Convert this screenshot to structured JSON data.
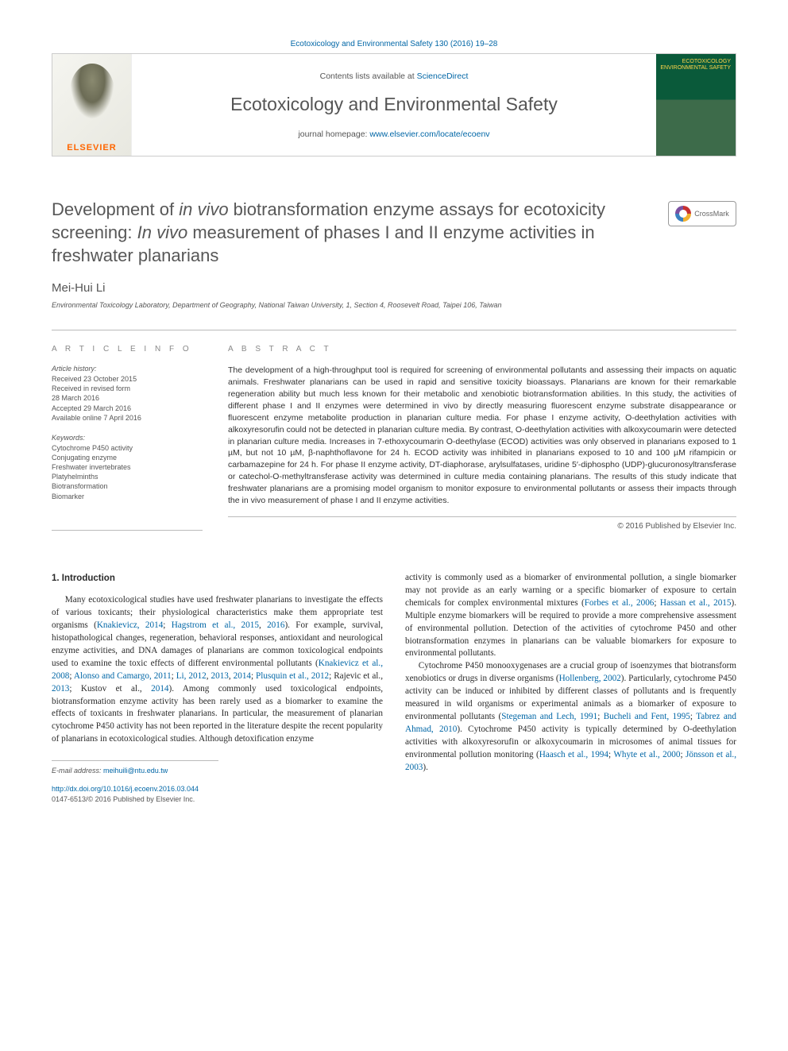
{
  "meta": {
    "citation": "Ecotoxicology and Environmental Safety 130 (2016) 19–28",
    "contents_prefix": "Contents lists available at ",
    "contents_link": "ScienceDirect",
    "journal_name": "Ecotoxicology and Environmental Safety",
    "homepage_prefix": "journal homepage: ",
    "homepage_url": "www.elsevier.com/locate/ecoenv",
    "elsevier": "ELSEVIER",
    "cover_text": "ECOTOXICOLOGY\nENVIRONMENTAL\nSAFETY",
    "crossmark": "CrossMark"
  },
  "title": {
    "full_html": "Development of <span class='ital'>in vivo</span> biotransformation enzyme assays for ecotoxicity screening: <span class='ital'>In vivo</span> measurement of phases I and II enzyme activities in freshwater planarians"
  },
  "author": "Mei-Hui Li",
  "affiliation": "Environmental Toxicology Laboratory, Department of Geography, National Taiwan University, 1, Section 4, Roosevelt Road, Taipei 106, Taiwan",
  "article_info": {
    "head": "A R T I C L E  I N F O",
    "history_head": "Article history:",
    "history": [
      "Received 23 October 2015",
      "Received in revised form",
      "28 March 2016",
      "Accepted 29 March 2016",
      "Available online 7 April 2016"
    ],
    "keywords_head": "Keywords:",
    "keywords": [
      "Cytochrome P450 activity",
      "Conjugating enzyme",
      "Freshwater invertebrates",
      "Platyhelminths",
      "Biotransformation",
      "Biomarker"
    ]
  },
  "abstract": {
    "head": "A B S T R A C T",
    "text": "The development of a high-throughput tool is required for screening of environmental pollutants and assessing their impacts on aquatic animals. Freshwater planarians can be used in rapid and sensitive toxicity bioassays. Planarians are known for their remarkable regeneration ability but much less known for their metabolic and xenobiotic biotransformation abilities. In this study, the activities of different phase I and II enzymes were determined in vivo by directly measuring fluorescent enzyme substrate disappearance or fluorescent enzyme metabolite production in planarian culture media. For phase I enzyme activity, O-deethylation activities with alkoxyresorufin could not be detected in planarian culture media. By contrast, O-deethylation activities with alkoxycoumarin were detected in planarian culture media. Increases in 7-ethoxycoumarin O-deethylase (ECOD) activities was only observed in planarians exposed to 1 µM, but not 10 µM, β-naphthoflavone for 24 h. ECOD activity was inhibited in planarians exposed to 10 and 100 µM rifampicin or carbamazepine for 24 h. For phase II enzyme activity, DT-diaphorase, arylsulfatases, uridine 5′-diphospho (UDP)-glucuronosyltransferase or catechol-O-methyltransferase activity was determined in culture media containing planarians. The results of this study indicate that freshwater planarians are a promising model organism to monitor exposure to environmental pollutants or assess their impacts through the in vivo measurement of phase I and II enzyme activities.",
    "copyright": "© 2016 Published by Elsevier Inc."
  },
  "intro": {
    "heading": "1. Introduction",
    "col1_p1": "Many ecotoxicological studies have used freshwater planarians to investigate the effects of various toxicants; their physiological characteristics make them appropriate test organisms (Knakievicz, 2014; Hagstrom et al., 2015, 2016). For example, survival, histopathological changes, regeneration, behavioral responses, antioxidant and neurological enzyme activities, and DNA damages of planarians are common toxicological endpoints used to examine the toxic effects of different environmental pollutants (Knakievicz et al., 2008; Alonso and Camargo, 2011; Li, 2012, 2013, 2014; Plusquin et al., 2012; Rajevic et al., 2013; Kustov et al., 2014). Among commonly used toxicological endpoints, biotransformation enzyme activity has been rarely used as a biomarker to examine the effects of toxicants in freshwater planarians. In particular, the measurement of planarian cytochrome P450 activity has not been reported in the literature despite the recent popularity of planarians in ecotoxicological studies. Although detoxification enzyme",
    "col2_p1": "activity is commonly used as a biomarker of environmental pollution, a single biomarker may not provide as an early warning or a specific biomarker of exposure to certain chemicals for complex environmental mixtures (Forbes et al., 2006; Hassan et al., 2015). Multiple enzyme biomarkers will be required to provide a more comprehensive assessment of environmental pollution. Detection of the activities of cytochrome P450 and other biotransformation enzymes in planarians can be valuable biomarkers for exposure to environmental pollutants.",
    "col2_p2": "Cytochrome P450 monooxygenases are a crucial group of isoenzymes that biotransform xenobiotics or drugs in diverse organisms (Hollenberg, 2002). Particularly, cytochrome P450 activity can be induced or inhibited by different classes of pollutants and is frequently measured in wild organisms or experimental animals as a biomarker of exposure to environmental pollutants (Stegeman and Lech, 1991; Bucheli and Fent, 1995; Tabrez and Ahmad, 2010). Cytochrome P450 activity is typically determined by O-deethylation activities with alkoxyresorufin or alkoxycoumarin in microsomes of animal tissues for environmental pollution monitoring (Haasch et al., 1994; Whyte et al., 2000; Jönsson et al., 2003).",
    "refs_col1": [
      "Knakievicz, 2014",
      "Hagstrom et al., 2015",
      "2016",
      "Knakievicz et al., 2008",
      "Alonso and Camargo, 2011",
      "Li, 2012",
      "2013",
      "2014",
      "Plusquin et al., 2012",
      "Rajevic et al., 2013",
      "Kustov et al., 2014"
    ],
    "refs_col2": [
      "Forbes et al., 2006",
      "Hassan et al., 2015",
      "Hollenberg, 2002",
      "Stegeman and Lech, 1991",
      "Bucheli and Fent, 1995",
      "Tabrez and Ahmad, 2010",
      "Haasch et al., 1994",
      "Whyte et al., 2000",
      "Jönsson et al., 2003"
    ]
  },
  "footer": {
    "email_label": "E-mail address: ",
    "email": "meihuili@ntu.edu.tw",
    "doi": "http://dx.doi.org/10.1016/j.ecoenv.2016.03.044",
    "issn_line": "0147-6513/© 2016 Published by Elsevier Inc."
  },
  "colors": {
    "link": "#0066a6",
    "text": "#333333",
    "muted": "#666666",
    "rule": "#bbbbbb",
    "elsevier_orange": "#ff6600",
    "cover_top": "#0a5a3a",
    "cover_bottom": "#3d6b4a"
  },
  "typography": {
    "body_pt": 11.2,
    "abstract_pt": 10.5,
    "title_pt": 22,
    "journal_pt": 23,
    "small_pt": 9
  }
}
